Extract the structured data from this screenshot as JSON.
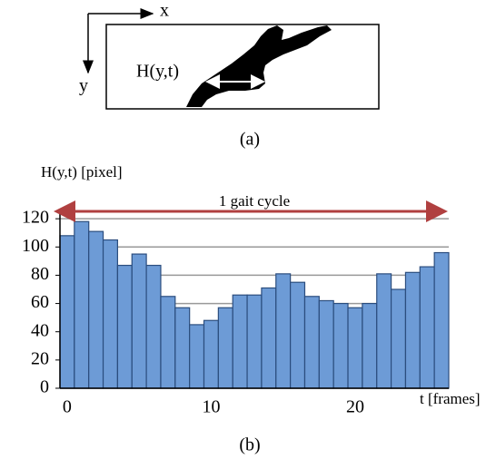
{
  "diagram": {
    "x_label": "x",
    "y_label": "y",
    "width_label": "H(y,t)",
    "caption": "(a)"
  },
  "chart_data": {
    "type": "bar",
    "y_label": "H(y,t) [pixel]",
    "x_label": "t [frames]",
    "annotation": "1 gait cycle",
    "categories": [
      "0",
      null,
      null,
      null,
      null,
      null,
      null,
      null,
      null,
      null,
      "10",
      null,
      null,
      null,
      null,
      null,
      null,
      null,
      null,
      null,
      "20",
      null,
      null,
      null,
      null,
      null,
      null
    ],
    "values": [
      108,
      118,
      111,
      105,
      87,
      95,
      87,
      65,
      57,
      45,
      48,
      57,
      66,
      66,
      71,
      81,
      75,
      65,
      62,
      60,
      57,
      60,
      81,
      70,
      82,
      86,
      96
    ],
    "color": "#6d9bd6",
    "ylim": [
      0,
      140
    ],
    "yticks": [
      0,
      20,
      40,
      60,
      80,
      100,
      120
    ],
    "grid": true
  },
  "caption_b": "(b)"
}
